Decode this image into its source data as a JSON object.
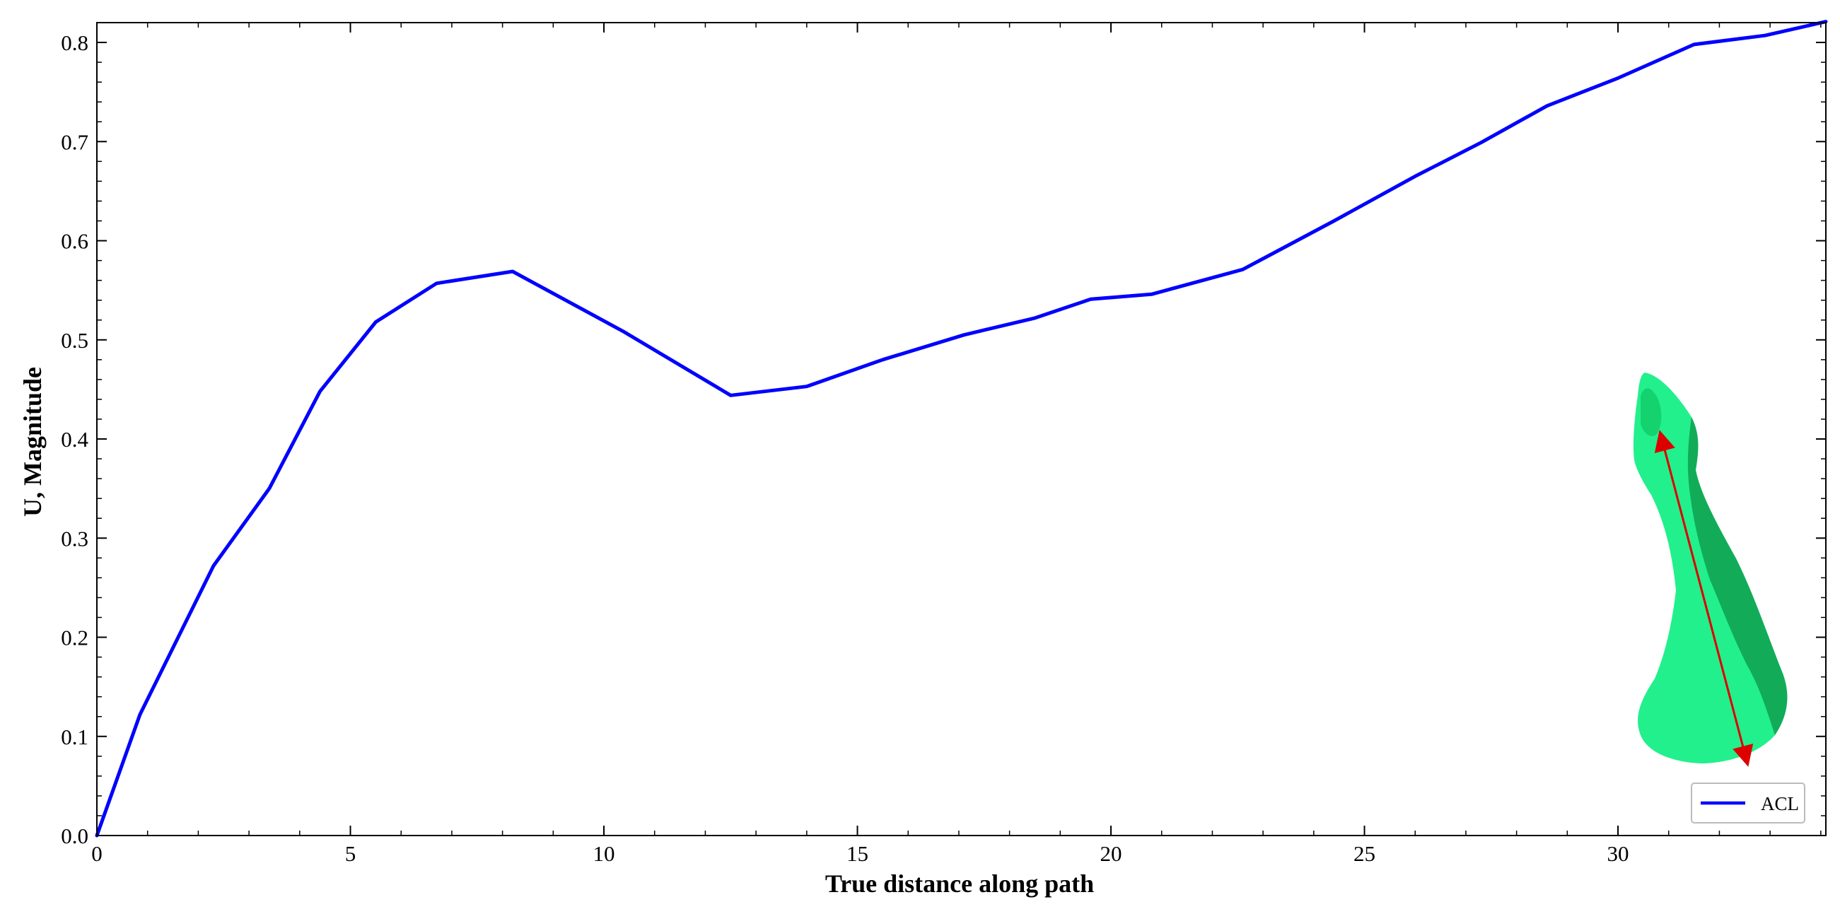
{
  "chart_data": {
    "type": "line",
    "xlabel": "True distance along path",
    "ylabel": "U, Magnitude",
    "xlim": [
      0,
      34.1
    ],
    "ylim": [
      0,
      0.82
    ],
    "xticks": [
      0,
      5,
      10,
      15,
      20,
      25,
      30
    ],
    "yticks": [
      0.0,
      0.1,
      0.2,
      0.3,
      0.4,
      0.5,
      0.6,
      0.7,
      0.8
    ],
    "xtick_labels": [
      "0",
      "5",
      "10",
      "15",
      "20",
      "25",
      "30"
    ],
    "ytick_labels": [
      "0.0",
      "0.1",
      "0.2",
      "0.3",
      "0.4",
      "0.5",
      "0.6",
      "0.7",
      "0.8"
    ],
    "grid": false,
    "legend_position": "bottom-right",
    "colors": {
      "series": "#0000ff",
      "arrow": "#dd0000",
      "ligament_light": "#22f08c",
      "ligament_mid": "#14d26e",
      "ligament_dark": "#0fa050"
    },
    "series": [
      {
        "name": "ACL",
        "x": [
          0,
          0.85,
          2.3,
          3.4,
          4.4,
          5.5,
          6.7,
          8.2,
          10.4,
          12.5,
          14.0,
          15.5,
          17.1,
          18.5,
          19.6,
          20.8,
          22.6,
          24.4,
          26.0,
          27.3,
          28.6,
          30.0,
          31.5,
          32.9,
          34.1
        ],
        "y": [
          0.0,
          0.122,
          0.272,
          0.35,
          0.448,
          0.518,
          0.557,
          0.569,
          0.508,
          0.444,
          0.453,
          0.48,
          0.505,
          0.522,
          0.541,
          0.546,
          0.571,
          0.62,
          0.665,
          0.699,
          0.736,
          0.764,
          0.798,
          0.807,
          0.821
        ]
      }
    ]
  }
}
